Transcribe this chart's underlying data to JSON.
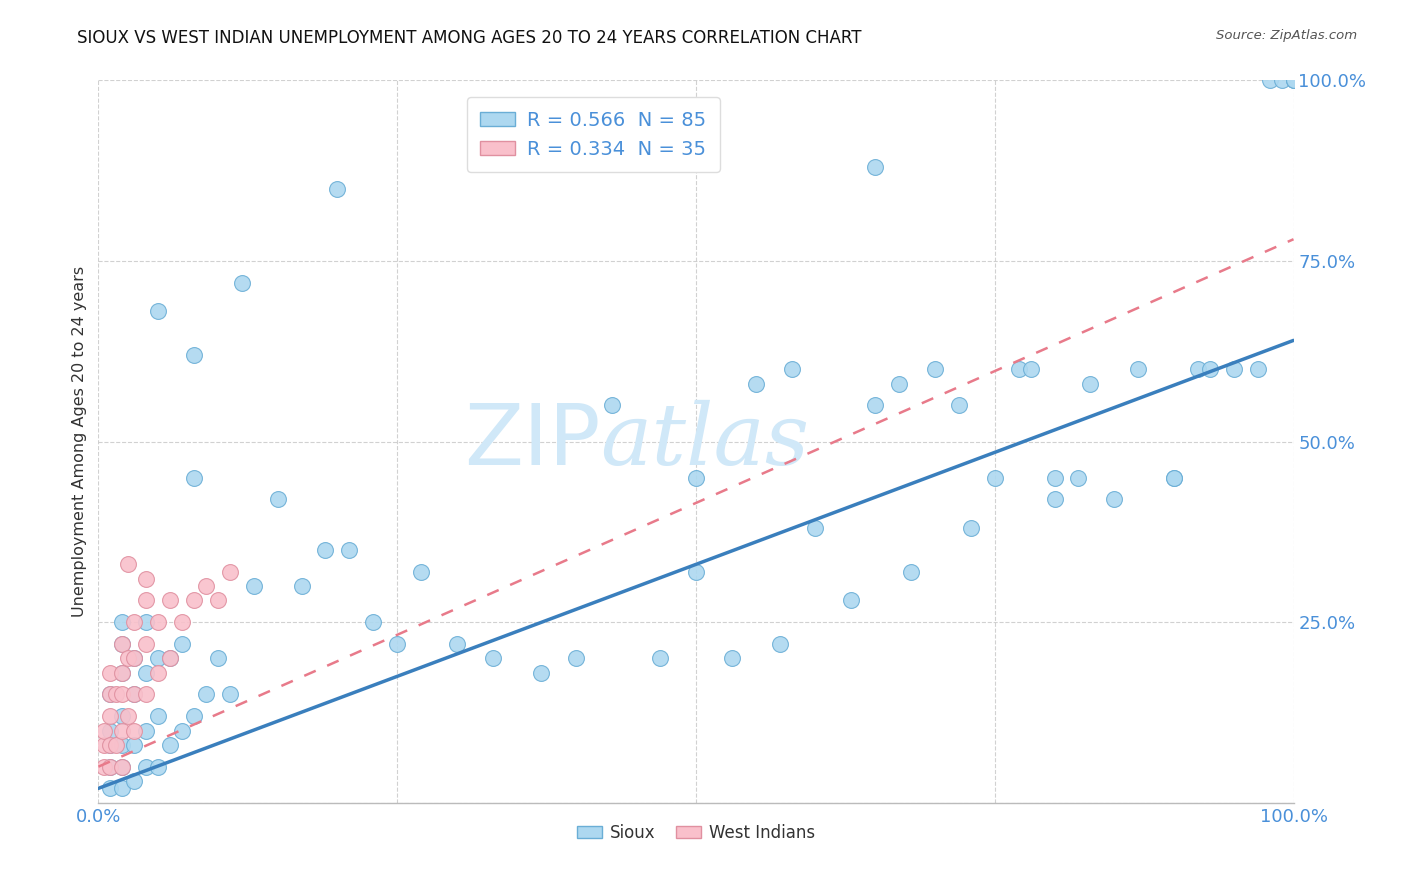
{
  "title": "SIOUX VS WEST INDIAN UNEMPLOYMENT AMONG AGES 20 TO 24 YEARS CORRELATION CHART",
  "source": "Source: ZipAtlas.com",
  "ylabel": "Unemployment Among Ages 20 to 24 years",
  "sioux_R": 0.566,
  "sioux_N": 85,
  "west_indian_R": 0.334,
  "west_indian_N": 35,
  "sioux_color": "#ADD8F0",
  "west_indian_color": "#F9C0CB",
  "sioux_edge_color": "#6AAED6",
  "west_indian_edge_color": "#E090A0",
  "sioux_line_color": "#3A7FBD",
  "west_indian_line_color": "#E87A8A",
  "background_color": "#FFFFFF",
  "grid_color": "#CCCCCC",
  "tick_color": "#4A90D9",
  "watermark_color": "#D0E8F8",
  "legend_label_1": "R = 0.566  N = 85",
  "legend_label_2": "R = 0.334  N = 35",
  "bottom_legend_1": "Sioux",
  "bottom_legend_2": "West Indians",
  "xlim": [
    0,
    1.0
  ],
  "ylim": [
    0,
    1.0
  ],
  "xticks": [
    0,
    0.25,
    0.5,
    0.75,
    1.0
  ],
  "yticks": [
    0,
    0.25,
    0.5,
    0.75,
    1.0
  ],
  "xtick_labels": [
    "0.0%",
    "",
    "",
    "",
    "100.0%"
  ],
  "ytick_labels": [
    "",
    "25.0%",
    "50.0%",
    "75.0%",
    "100.0%"
  ],
  "sioux_line_x": [
    0.0,
    1.0
  ],
  "sioux_line_y": [
    0.02,
    0.64
  ],
  "west_line_x": [
    0.0,
    1.0
  ],
  "west_line_y": [
    0.05,
    0.78
  ],
  "sioux_x": [
    0.01,
    0.01,
    0.01,
    0.01,
    0.01,
    0.02,
    0.02,
    0.02,
    0.02,
    0.02,
    0.02,
    0.02,
    0.03,
    0.03,
    0.03,
    0.03,
    0.04,
    0.04,
    0.04,
    0.04,
    0.05,
    0.05,
    0.05,
    0.06,
    0.06,
    0.07,
    0.07,
    0.08,
    0.08,
    0.09,
    0.1,
    0.11,
    0.13,
    0.15,
    0.17,
    0.19,
    0.21,
    0.23,
    0.25,
    0.27,
    0.3,
    0.33,
    0.37,
    0.4,
    0.43,
    0.47,
    0.5,
    0.5,
    0.53,
    0.55,
    0.57,
    0.58,
    0.6,
    0.63,
    0.65,
    0.67,
    0.68,
    0.7,
    0.72,
    0.73,
    0.75,
    0.77,
    0.78,
    0.8,
    0.8,
    0.82,
    0.83,
    0.85,
    0.87,
    0.9,
    0.9,
    0.92,
    0.93,
    0.95,
    0.97,
    0.98,
    0.99,
    1.0,
    1.0,
    1.0,
    0.05,
    0.08,
    0.12,
    0.2,
    0.65
  ],
  "sioux_y": [
    0.02,
    0.05,
    0.08,
    0.1,
    0.15,
    0.02,
    0.05,
    0.08,
    0.12,
    0.18,
    0.22,
    0.25,
    0.03,
    0.08,
    0.15,
    0.2,
    0.05,
    0.1,
    0.18,
    0.25,
    0.05,
    0.12,
    0.2,
    0.08,
    0.2,
    0.1,
    0.22,
    0.12,
    0.45,
    0.15,
    0.2,
    0.15,
    0.3,
    0.42,
    0.3,
    0.35,
    0.35,
    0.25,
    0.22,
    0.32,
    0.22,
    0.2,
    0.18,
    0.2,
    0.55,
    0.2,
    0.32,
    0.45,
    0.2,
    0.58,
    0.22,
    0.6,
    0.38,
    0.28,
    0.55,
    0.58,
    0.32,
    0.6,
    0.55,
    0.38,
    0.45,
    0.6,
    0.6,
    0.42,
    0.45,
    0.45,
    0.58,
    0.42,
    0.6,
    0.45,
    0.45,
    0.6,
    0.6,
    0.6,
    0.6,
    1.0,
    1.0,
    1.0,
    1.0,
    1.0,
    0.68,
    0.62,
    0.72,
    0.85,
    0.88
  ],
  "west_x": [
    0.005,
    0.005,
    0.005,
    0.01,
    0.01,
    0.01,
    0.01,
    0.01,
    0.015,
    0.015,
    0.02,
    0.02,
    0.02,
    0.02,
    0.02,
    0.025,
    0.025,
    0.03,
    0.03,
    0.03,
    0.03,
    0.04,
    0.04,
    0.04,
    0.05,
    0.05,
    0.06,
    0.06,
    0.07,
    0.08,
    0.09,
    0.1,
    0.11,
    0.025,
    0.04
  ],
  "west_y": [
    0.05,
    0.08,
    0.1,
    0.05,
    0.08,
    0.12,
    0.15,
    0.18,
    0.08,
    0.15,
    0.05,
    0.1,
    0.15,
    0.18,
    0.22,
    0.12,
    0.2,
    0.1,
    0.15,
    0.2,
    0.25,
    0.15,
    0.22,
    0.28,
    0.18,
    0.25,
    0.2,
    0.28,
    0.25,
    0.28,
    0.3,
    0.28,
    0.32,
    0.33,
    0.31
  ]
}
